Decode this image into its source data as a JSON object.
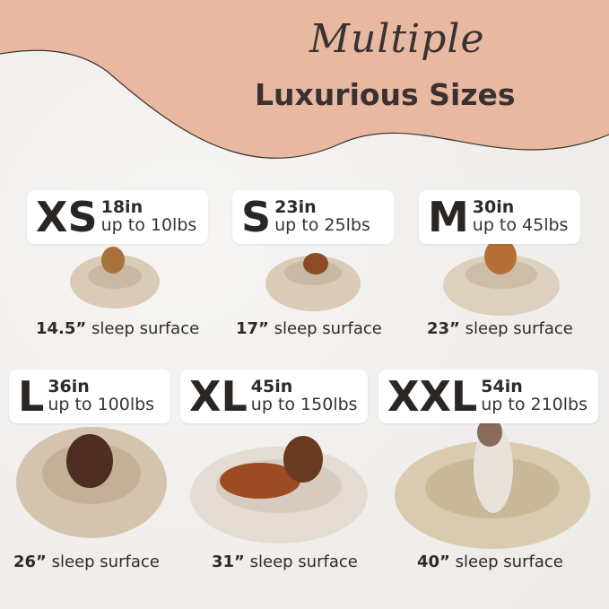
{
  "header": {
    "script_title": "Multiple",
    "main_title": "Luxurious Sizes"
  },
  "colors": {
    "band": "#e8b8a0",
    "text": "#2e2a28",
    "bed": "#d9cbb8"
  },
  "sizes": [
    {
      "size": "XS",
      "inches": "18in",
      "weight": "up to 10lbs",
      "surface_value": "14.5”",
      "surface_label": "sleep surface"
    },
    {
      "size": "S",
      "inches": "23in",
      "weight": "up to 25lbs",
      "surface_value": "17”",
      "surface_label": "sleep surface"
    },
    {
      "size": "M",
      "inches": "30in",
      "weight": "up to 45lbs",
      "surface_value": "23”",
      "surface_label": "sleep surface"
    },
    {
      "size": "L",
      "inches": "36in",
      "weight": "up to 100lbs",
      "surface_value": "26”",
      "surface_label": "sleep surface"
    },
    {
      "size": "XL",
      "inches": "45in",
      "weight": "up to 150lbs",
      "surface_value": "31”",
      "surface_label": "sleep surface"
    },
    {
      "size": "XXL",
      "inches": "54in",
      "weight": "up to 210lbs",
      "surface_value": "40”",
      "surface_label": "sleep surface"
    }
  ]
}
